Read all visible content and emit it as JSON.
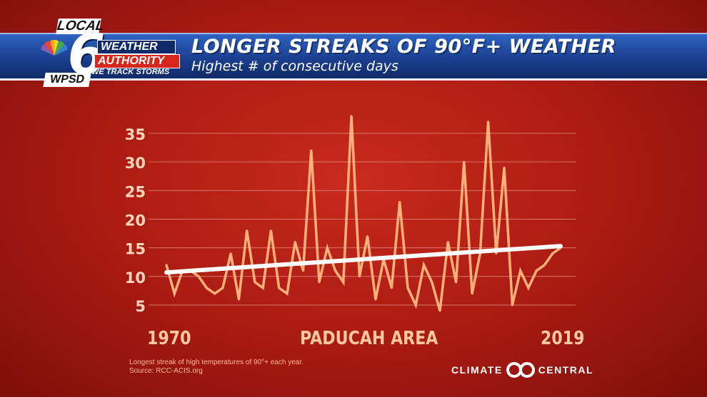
{
  "header": {
    "title": "LONGER STREAKS OF 90°F+ WEATHER",
    "subtitle": "Highest # of consecutive days"
  },
  "logo": {
    "local": "LOCAL",
    "number": "6",
    "weather": "WEATHER",
    "authority": "AUTHORITY",
    "tagline": "WE TRACK STORMS",
    "station": "WPSD"
  },
  "colors": {
    "line": "#ffb07a",
    "trend": "#ffffff",
    "tick_label": "#ffd6bd",
    "grid": "#d9776b"
  },
  "chart_data": {
    "type": "line",
    "title": "",
    "xlabel": "PADUCAH AREA",
    "x_start_label": "1970",
    "x_end_label": "2019",
    "ylabel": "",
    "yticks": [
      5,
      10,
      15,
      20,
      25,
      30,
      35
    ],
    "ylim": [
      3,
      38
    ],
    "grid": true,
    "x": [
      1970,
      1971,
      1972,
      1973,
      1974,
      1975,
      1976,
      1977,
      1978,
      1979,
      1980,
      1981,
      1982,
      1983,
      1984,
      1985,
      1986,
      1987,
      1988,
      1989,
      1990,
      1991,
      1992,
      1993,
      1994,
      1995,
      1996,
      1997,
      1998,
      1999,
      2000,
      2001,
      2002,
      2003,
      2004,
      2005,
      2006,
      2007,
      2008,
      2009,
      2010,
      2011,
      2012,
      2013,
      2014,
      2015,
      2016,
      2017,
      2018,
      2019
    ],
    "series": [
      {
        "name": "",
        "values": [
          12,
          7,
          11,
          11,
          10,
          8,
          7,
          8,
          14,
          6,
          18,
          9,
          8,
          18,
          8,
          7,
          16,
          11,
          32,
          9,
          15,
          11,
          9,
          38,
          10,
          17,
          6,
          13,
          8,
          23,
          8,
          5,
          12,
          9,
          4,
          16,
          9,
          30,
          7,
          14,
          37,
          14,
          29,
          5,
          11,
          8,
          11,
          12,
          14,
          15
        ]
      }
    ],
    "trend": {
      "start": 10.7,
      "end": 15.3
    }
  },
  "caption": {
    "line1": "Longest streak of high temperatures of 90°+ each year.",
    "line2": "Source: RCC-ACIS.org"
  },
  "brand": {
    "left": "CLIMATE",
    "right": "CENTRAL"
  }
}
